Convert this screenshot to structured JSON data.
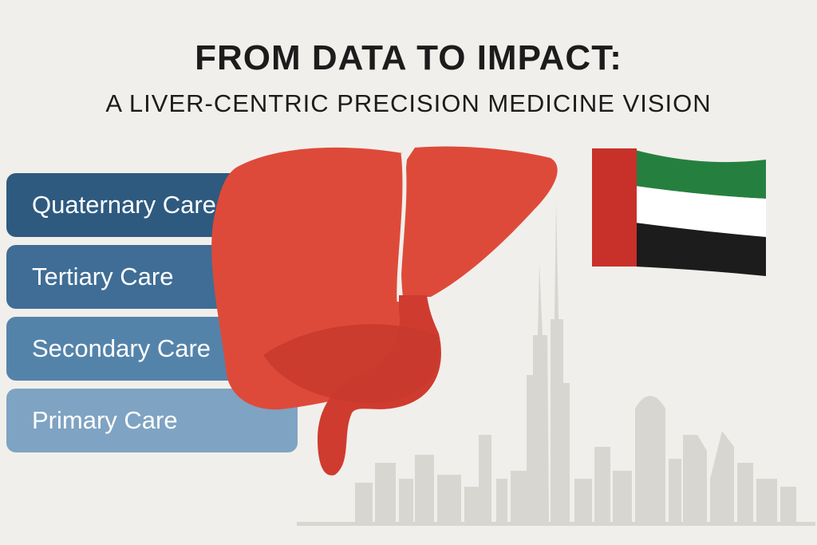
{
  "header": {
    "title": "FROM DATA TO IMPACT:",
    "subtitle": "A LIVER-CENTRIC PRECISION MEDICINE VISION"
  },
  "tiers": [
    {
      "label": "Quaternary Care",
      "color": "#2e5a80"
    },
    {
      "label": "Tertiary Care",
      "color": "#3f6d95"
    },
    {
      "label": "Secondary Care",
      "color": "#5483aa"
    },
    {
      "label": "Primary Care",
      "color": "#7fa3c2"
    }
  ],
  "colors": {
    "liver": "#de4a3a",
    "gallbladder": "#cf3b2f",
    "flag_red": "#c8302a",
    "flag_green": "#25803f",
    "flag_white": "#ffffff",
    "flag_black": "#1c1c1c",
    "skyline": "#d8d6d1"
  },
  "icons": [
    "liver-icon",
    "uae-flag-icon",
    "city-skyline-icon"
  ]
}
